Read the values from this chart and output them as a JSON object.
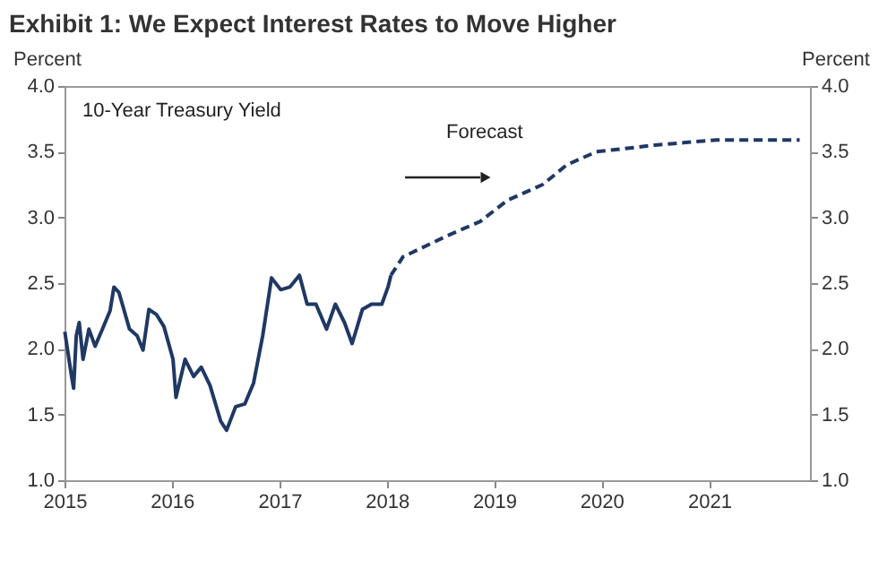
{
  "chart_data": {
    "type": "line",
    "title": "Exhibit 1: We Expect Interest Rates to Move Higher",
    "ylabel": "Percent",
    "y2label": "Percent",
    "annotations": [
      "Forecast"
    ],
    "xlim": [
      "2015-01-01",
      "2021-12-10"
    ],
    "xticks": [
      "2015",
      "2016",
      "2017",
      "2018",
      "2019",
      "2020",
      "2021"
    ],
    "ylim": [
      1.0,
      4.0
    ],
    "yticks": [
      {
        "value": 1,
        "label": "1.0"
      },
      {
        "value": 1.5,
        "label": "1.5"
      },
      {
        "value": 2,
        "label": "2.0"
      },
      {
        "value": 2.5,
        "label": "2.5"
      },
      {
        "value": 3,
        "label": "3.0"
      },
      {
        "value": 3.5,
        "label": "3.5"
      },
      {
        "value": 4,
        "label": "4.0"
      }
    ],
    "y2lim": [
      1.0,
      4.0
    ],
    "y2ticks": [
      {
        "value": 1,
        "label": "1.0"
      },
      {
        "value": 1.5,
        "label": "1.5"
      },
      {
        "value": 2,
        "label": "2.0"
      },
      {
        "value": 2.5,
        "label": "2.5"
      },
      {
        "value": 3,
        "label": "3.0"
      },
      {
        "value": 3.5,
        "label": "3.5"
      },
      {
        "value": 4,
        "label": "4.0"
      }
    ],
    "grid": false,
    "series": [
      {
        "name": "10-Year Treasury Yield",
        "color": "#1f3864",
        "line_style": "solid",
        "x": [
          "2015-01-02",
          "2015-01-25",
          "2015-02-01",
          "2015-02-10",
          "2015-02-20",
          "2015-03-05",
          "2015-03-25",
          "2015-04-15",
          "2015-05-10",
          "2015-06-05",
          "2015-06-18",
          "2015-07-05",
          "2015-08-10",
          "2015-09-05",
          "2015-09-25",
          "2015-10-15",
          "2015-11-10",
          "2015-12-05",
          "2016-01-05",
          "2016-01-15",
          "2016-02-15",
          "2016-03-15",
          "2016-04-10",
          "2016-05-10",
          "2016-06-15",
          "2016-07-05",
          "2016-08-05",
          "2016-09-05",
          "2016-10-05",
          "2016-11-05",
          "2016-12-05",
          "2017-01-05",
          "2017-02-05",
          "2017-03-10",
          "2017-04-05",
          "2017-05-05",
          "2017-06-10",
          "2017-07-10",
          "2017-08-10",
          "2017-09-05",
          "2017-10-10",
          "2017-11-10",
          "2017-12-15",
          "2018-01-05",
          "2018-01-15"
        ],
        "values": [
          2.13,
          1.79,
          1.7,
          2.1,
          2.2,
          1.92,
          2.15,
          2.02,
          2.15,
          2.29,
          2.47,
          2.43,
          2.15,
          2.1,
          1.99,
          2.3,
          2.26,
          2.17,
          1.92,
          1.63,
          1.92,
          1.79,
          1.86,
          1.72,
          1.45,
          1.38,
          1.56,
          1.58,
          1.74,
          2.1,
          2.54,
          2.45,
          2.47,
          2.56,
          2.34,
          2.34,
          2.15,
          2.34,
          2.2,
          2.04,
          2.3,
          2.34,
          2.34,
          2.47,
          2.56
        ]
      },
      {
        "color": "#1f3864",
        "line_style": "dashed",
        "x": [
          "2018-01-15",
          "2018-02-25",
          "2018-07-25",
          "2018-11-15",
          "2019-02-15",
          "2019-06-15",
          "2019-09-05",
          "2019-12-15",
          "2020-07-01",
          "2021-01-25",
          "2021-11-05"
        ],
        "values": [
          2.56,
          2.7,
          2.86,
          2.97,
          3.13,
          3.25,
          3.4,
          3.5,
          3.55,
          3.59,
          3.59
        ]
      }
    ]
  }
}
